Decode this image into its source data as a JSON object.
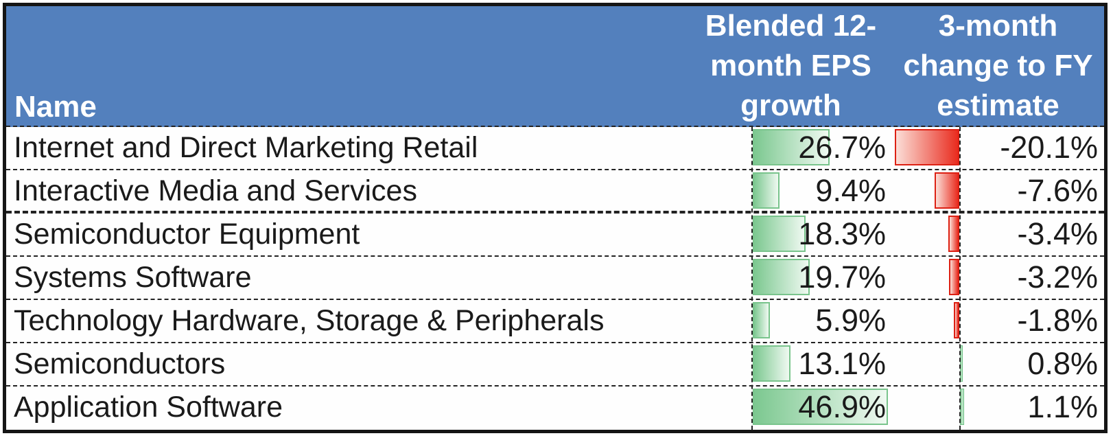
{
  "header": {
    "name_label": "Name",
    "eps_label": "Blended 12-\nmonth EPS\ngrowth",
    "chg_label": "3-month\nchange to FY\nestimate"
  },
  "chart_data": {
    "type": "table",
    "title": "",
    "columns": [
      "Name",
      "Blended 12-month EPS growth",
      "3-month change to FY estimate"
    ],
    "rows": [
      {
        "name": "Internet and Direct Marketing Retail",
        "eps_growth_pct": 26.7,
        "eps_display": "26.7%",
        "chg_pct": -20.1,
        "chg_display": "-20.1%"
      },
      {
        "name": "Interactive Media and Services",
        "eps_growth_pct": 9.4,
        "eps_display": "9.4%",
        "chg_pct": -7.6,
        "chg_display": "-7.6%"
      },
      {
        "name": "Semiconductor Equipment",
        "eps_growth_pct": 18.3,
        "eps_display": "18.3%",
        "chg_pct": -3.4,
        "chg_display": "-3.4%"
      },
      {
        "name": "Systems Software",
        "eps_growth_pct": 19.7,
        "eps_display": "19.7%",
        "chg_pct": -3.2,
        "chg_display": "-3.2%"
      },
      {
        "name": "Technology Hardware, Storage & Peripherals",
        "eps_growth_pct": 5.9,
        "eps_display": "5.9%",
        "chg_pct": -1.8,
        "chg_display": "-1.8%"
      },
      {
        "name": "Semiconductors",
        "eps_growth_pct": 13.1,
        "eps_display": "13.1%",
        "chg_pct": 0.8,
        "chg_display": "0.8%"
      },
      {
        "name": "Application Software",
        "eps_growth_pct": 46.9,
        "eps_display": "46.9%",
        "chg_pct": 1.1,
        "chg_display": "1.1%"
      }
    ],
    "bar_scales": {
      "eps_bar_max_pct": 46.9,
      "chg_negative_max_pct": 20.1,
      "chg_positive_max_pct": 1.1
    },
    "layout_hints": {
      "eps_bars": "green gradient bars, left-anchored at dashed cell border",
      "chg_bars": "zero axis drawn as dashed line near right of cell; negative red bars extend left, positive green bars extend right",
      "grid": "dashed row separators, heavy dashed separator under row 2"
    }
  },
  "colors": {
    "header_bg": "#5380bd",
    "header_text": "#ffffff",
    "positive_bar_green": "#7cc890",
    "positive_bar_border": "#79c48c",
    "negative_bar_red": "#e92c1f",
    "negative_bar_border": "#dd2013",
    "row_text": "#1a1a1a",
    "outer_border": "#151515"
  }
}
